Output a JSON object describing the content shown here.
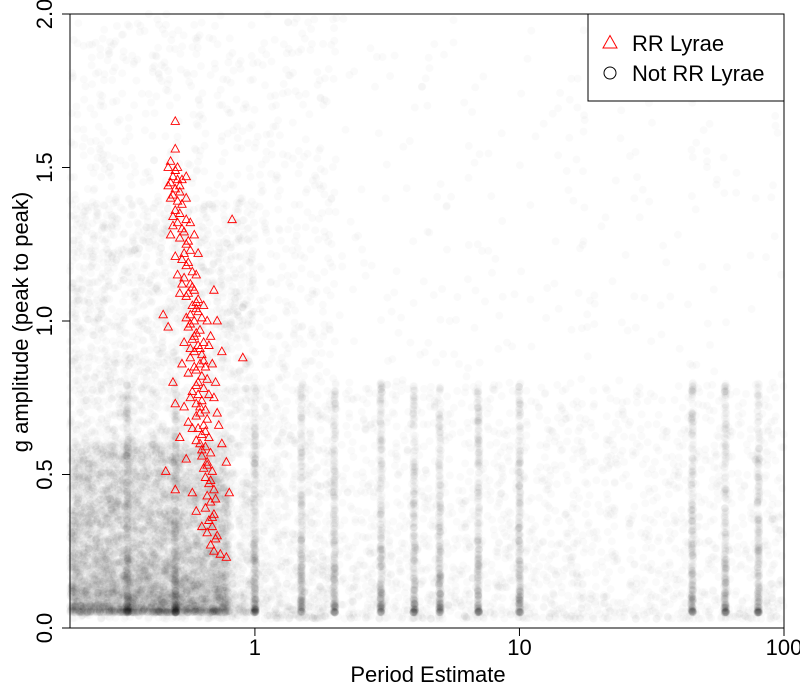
{
  "chart_data": {
    "type": "scatter",
    "title": "",
    "xlabel": "Period Estimate",
    "ylabel": "g amplitude (peak to peak)",
    "x_scale": "log",
    "xlim": [
      0.2,
      100
    ],
    "ylim": [
      0.0,
      2.0
    ],
    "x_ticks": [
      1,
      10,
      100
    ],
    "x_tick_labels": [
      "1",
      "10",
      "100"
    ],
    "y_ticks": [
      0.0,
      0.5,
      1.0,
      1.5,
      2.0
    ],
    "y_tick_labels": [
      "0.0",
      "0.5",
      "1.0",
      "1.5",
      "2.0"
    ],
    "grid": false,
    "legend_position": "top-right",
    "legend": [
      {
        "label": "RR Lyrae",
        "marker": "triangle",
        "color": "#ff0000"
      },
      {
        "label": "Not RR Lyrae",
        "marker": "circle",
        "color": "#000000"
      }
    ],
    "series": [
      {
        "name": "RR Lyrae",
        "marker": "triangle",
        "color": "#ff0000",
        "points": [
          [
            0.5,
            1.65
          ],
          [
            0.5,
            1.56
          ],
          [
            0.48,
            1.52
          ],
          [
            0.47,
            1.5
          ],
          [
            0.5,
            1.49
          ],
          [
            0.49,
            1.47
          ],
          [
            0.51,
            1.46
          ],
          [
            0.48,
            1.45
          ],
          [
            0.47,
            1.44
          ],
          [
            0.5,
            1.43
          ],
          [
            0.52,
            1.42
          ],
          [
            0.49,
            1.41
          ],
          [
            0.48,
            1.4
          ],
          [
            0.51,
            1.39
          ],
          [
            0.53,
            1.38
          ],
          [
            0.5,
            1.36
          ],
          [
            0.52,
            1.35
          ],
          [
            0.55,
            1.33
          ],
          [
            0.51,
            1.32
          ],
          [
            0.49,
            1.31
          ],
          [
            0.53,
            1.3
          ],
          [
            0.54,
            1.29
          ],
          [
            0.52,
            1.27
          ],
          [
            0.56,
            1.26
          ],
          [
            0.55,
            1.25
          ],
          [
            0.57,
            1.23
          ],
          [
            0.54,
            1.22
          ],
          [
            0.53,
            1.2
          ],
          [
            0.56,
            1.19
          ],
          [
            0.55,
            1.18
          ],
          [
            0.58,
            1.16
          ],
          [
            0.6,
            1.15
          ],
          [
            0.54,
            1.14
          ],
          [
            0.57,
            1.12
          ],
          [
            0.59,
            1.1
          ],
          [
            0.56,
            1.09
          ],
          [
            0.55,
            1.08
          ],
          [
            0.61,
            1.07
          ],
          [
            0.58,
            1.05
          ],
          [
            0.6,
            1.04
          ],
          [
            0.57,
            1.02
          ],
          [
            0.63,
            1.01
          ],
          [
            0.59,
            1.0
          ],
          [
            0.56,
            0.98
          ],
          [
            0.62,
            0.97
          ],
          [
            0.6,
            0.96
          ],
          [
            0.58,
            0.94
          ],
          [
            0.64,
            0.93
          ],
          [
            0.61,
            0.92
          ],
          [
            0.59,
            0.9
          ],
          [
            0.63,
            0.89
          ],
          [
            0.57,
            0.88
          ],
          [
            0.62,
            0.86
          ],
          [
            0.65,
            0.85
          ],
          [
            0.6,
            0.84
          ],
          [
            0.63,
            0.82
          ],
          [
            0.66,
            0.81
          ],
          [
            0.61,
            0.8
          ],
          [
            0.64,
            0.78
          ],
          [
            0.58,
            0.77
          ],
          [
            0.67,
            0.76
          ],
          [
            0.63,
            0.74
          ],
          [
            0.6,
            0.73
          ],
          [
            0.65,
            0.71
          ],
          [
            0.62,
            0.7
          ],
          [
            0.66,
            0.68
          ],
          [
            0.64,
            0.66
          ],
          [
            0.61,
            0.65
          ],
          [
            0.63,
            0.63
          ],
          [
            0.67,
            0.62
          ],
          [
            0.62,
            0.6
          ],
          [
            0.65,
            0.59
          ],
          [
            0.68,
            0.57
          ],
          [
            0.63,
            0.56
          ],
          [
            0.66,
            0.54
          ],
          [
            0.64,
            0.52
          ],
          [
            0.69,
            0.51
          ],
          [
            0.65,
            0.49
          ],
          [
            0.67,
            0.47
          ],
          [
            0.7,
            0.45
          ],
          [
            0.66,
            0.43
          ],
          [
            0.68,
            0.41
          ],
          [
            0.65,
            0.39
          ],
          [
            0.7,
            0.37
          ],
          [
            0.67,
            0.35
          ],
          [
            0.69,
            0.33
          ],
          [
            0.66,
            0.31
          ],
          [
            0.71,
            0.29
          ],
          [
            0.68,
            0.27
          ],
          [
            0.7,
            0.25
          ],
          [
            0.55,
            1.47
          ],
          [
            0.52,
            1.44
          ],
          [
            0.58,
            1.11
          ],
          [
            0.6,
            1.06
          ],
          [
            0.61,
            1.03
          ],
          [
            0.57,
            0.99
          ],
          [
            0.59,
            0.95
          ],
          [
            0.62,
            0.91
          ],
          [
            0.64,
            0.87
          ],
          [
            0.56,
            0.83
          ],
          [
            0.6,
            0.79
          ],
          [
            0.57,
            0.75
          ],
          [
            0.62,
            0.72
          ],
          [
            0.6,
            0.69
          ],
          [
            0.65,
            0.64
          ],
          [
            0.63,
            0.58
          ],
          [
            0.66,
            0.53
          ],
          [
            0.68,
            0.48
          ],
          [
            0.71,
            0.42
          ],
          [
            0.69,
            0.36
          ],
          [
            0.72,
            0.3
          ],
          [
            0.74,
            0.24
          ],
          [
            0.45,
            1.02
          ],
          [
            0.46,
            0.51
          ],
          [
            0.5,
            0.45
          ],
          [
            0.78,
            0.23
          ],
          [
            0.82,
            1.33
          ],
          [
            0.9,
            0.88
          ],
          [
            0.78,
            0.54
          ],
          [
            0.8,
            0.44
          ],
          [
            0.75,
            0.6
          ],
          [
            0.75,
            0.9
          ],
          [
            0.72,
            1.0
          ],
          [
            0.7,
            1.1
          ],
          [
            0.68,
            0.95
          ],
          [
            0.72,
            0.7
          ],
          [
            0.49,
            1.34
          ],
          [
            0.48,
            1.28
          ],
          [
            0.47,
            0.98
          ],
          [
            0.49,
            0.8
          ],
          [
            0.5,
            0.73
          ],
          [
            0.52,
            0.62
          ],
          [
            0.55,
            0.55
          ],
          [
            0.58,
            0.44
          ],
          [
            0.6,
            0.38
          ],
          [
            0.63,
            0.33
          ],
          [
            0.54,
            0.93
          ],
          [
            0.53,
            0.86
          ],
          [
            0.51,
            1.15
          ],
          [
            0.5,
            1.21
          ],
          [
            0.52,
            1.09
          ],
          [
            0.54,
            0.72
          ],
          [
            0.56,
            0.67
          ],
          [
            0.58,
            0.65
          ],
          [
            0.6,
            0.61
          ],
          [
            0.64,
            1.05
          ],
          [
            0.66,
            1.0
          ],
          [
            0.67,
            0.92
          ],
          [
            0.69,
            0.86
          ],
          [
            0.71,
            0.8
          ],
          [
            0.7,
            0.75
          ],
          [
            0.73,
            0.66
          ],
          [
            0.61,
            1.22
          ],
          [
            0.59,
            1.28
          ],
          [
            0.57,
            1.32
          ],
          [
            0.55,
            1.4
          ],
          [
            0.53,
            1.46
          ],
          [
            0.51,
            1.5
          ],
          [
            0.53,
            1.12
          ],
          [
            0.55,
            1.01
          ],
          [
            0.57,
            0.91
          ],
          [
            0.59,
            0.85
          ],
          [
            0.61,
            0.76
          ]
        ]
      },
      {
        "name": "Not RR Lyrae",
        "marker": "circle",
        "color": "#000000",
        "density_regions": [
          {
            "x": [
              0.2,
              0.8
            ],
            "y": [
              0.05,
              0.6
            ],
            "weight": 5
          },
          {
            "x": [
              0.2,
              1.0
            ],
            "y": [
              0.05,
              1.4
            ],
            "weight": 3
          },
          {
            "x": [
              0.2,
              2.0
            ],
            "y": [
              0.03,
              2.0
            ],
            "weight": 2
          },
          {
            "x": [
              1.0,
              100
            ],
            "y": [
              0.03,
              0.8
            ],
            "weight": 2
          },
          {
            "x": [
              0.2,
              100
            ],
            "y": [
              0.03,
              2.0
            ],
            "weight": 1
          }
        ],
        "period_alias_lines": [
          0.33,
          0.5,
          1.0,
          1.5,
          2.0,
          3.0,
          4.0,
          5.0,
          7.0,
          10.0,
          45,
          60,
          80
        ]
      }
    ]
  }
}
